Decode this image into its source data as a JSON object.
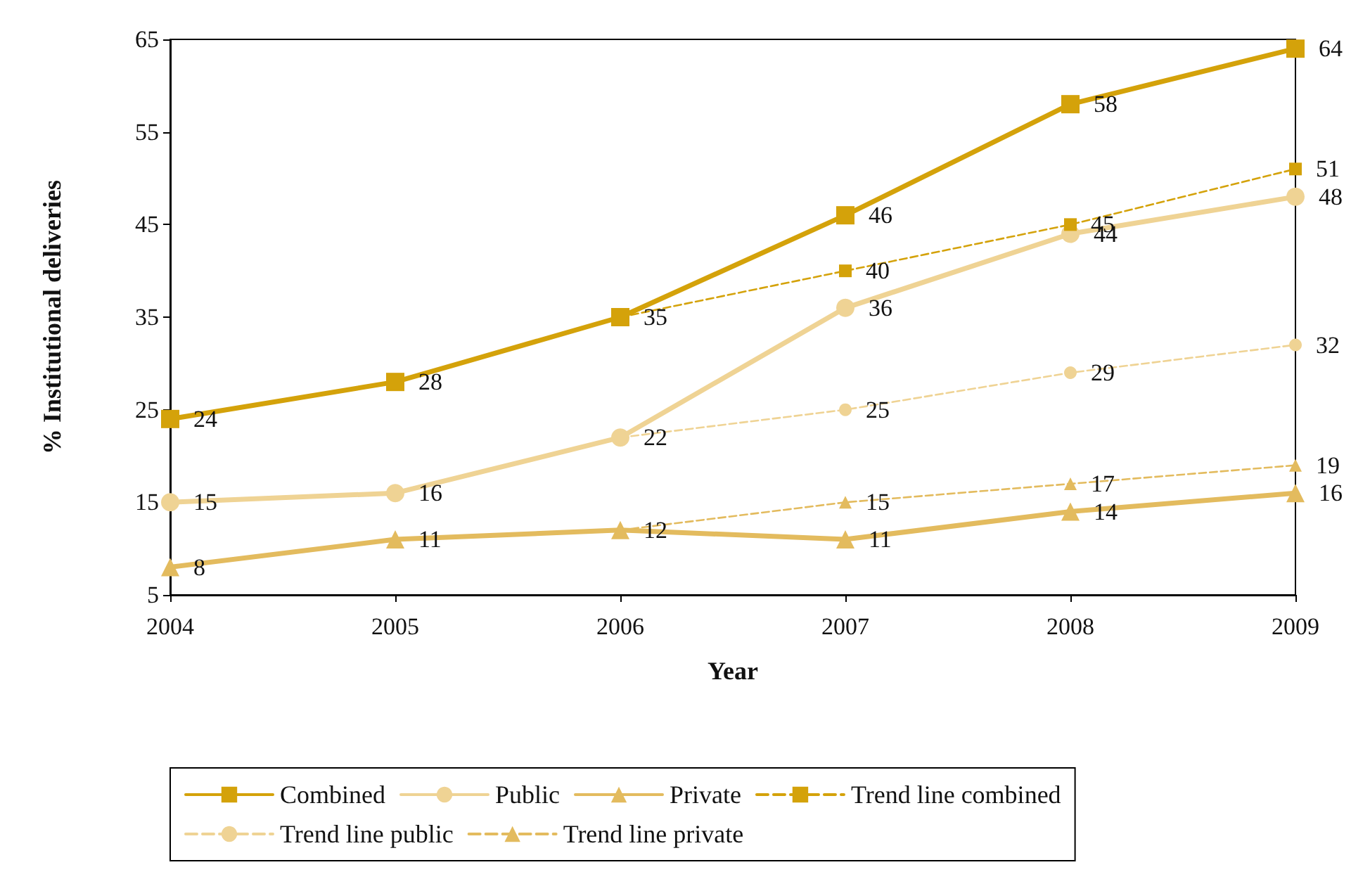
{
  "chart_data": {
    "type": "line",
    "xlabel": "Year",
    "ylabel": "% Institutional deliveries",
    "x": [
      2004,
      2005,
      2006,
      2007,
      2008,
      2009
    ],
    "xlim": [
      2004,
      2009
    ],
    "xticks": [
      2004,
      2005,
      2006,
      2007,
      2008,
      2009
    ],
    "ylim": [
      5,
      65
    ],
    "yticks": [
      5,
      15,
      25,
      35,
      45,
      55,
      65
    ],
    "grid": false,
    "legend": "bottom",
    "data_labels": true,
    "series": [
      {
        "name": "Combined",
        "color": "#d4a20a",
        "marker": "square",
        "line_style": "solid",
        "values": [
          24,
          28,
          35,
          46,
          58,
          64
        ]
      },
      {
        "name": "Public",
        "color": "#efd394",
        "marker": "circle",
        "line_style": "solid",
        "values": [
          15,
          16,
          22,
          36,
          44,
          48
        ]
      },
      {
        "name": "Private",
        "color": "#e3bb5e",
        "marker": "triangle",
        "line_style": "solid",
        "values": [
          8,
          11,
          12,
          11,
          14,
          16
        ]
      },
      {
        "name": "Trend line combined",
        "color": "#d4a20a",
        "marker": "square",
        "line_style": "dashed",
        "values": [
          null,
          null,
          35,
          40,
          45,
          51
        ],
        "value_labels": [
          null,
          null,
          null,
          "40",
          "45",
          "51"
        ]
      },
      {
        "name": "Trend line public",
        "color": "#efd394",
        "marker": "circle",
        "line_style": "dashed",
        "values": [
          null,
          null,
          22,
          25,
          29,
          32
        ],
        "value_labels": [
          null,
          null,
          null,
          "25",
          "29",
          "32"
        ]
      },
      {
        "name": "Trend line private",
        "color": "#e3bb5e",
        "marker": "triangle",
        "line_style": "dashed",
        "values": [
          null,
          null,
          12,
          15,
          17,
          19
        ],
        "value_labels": [
          null,
          null,
          null,
          "15",
          "17",
          "19"
        ]
      }
    ]
  }
}
